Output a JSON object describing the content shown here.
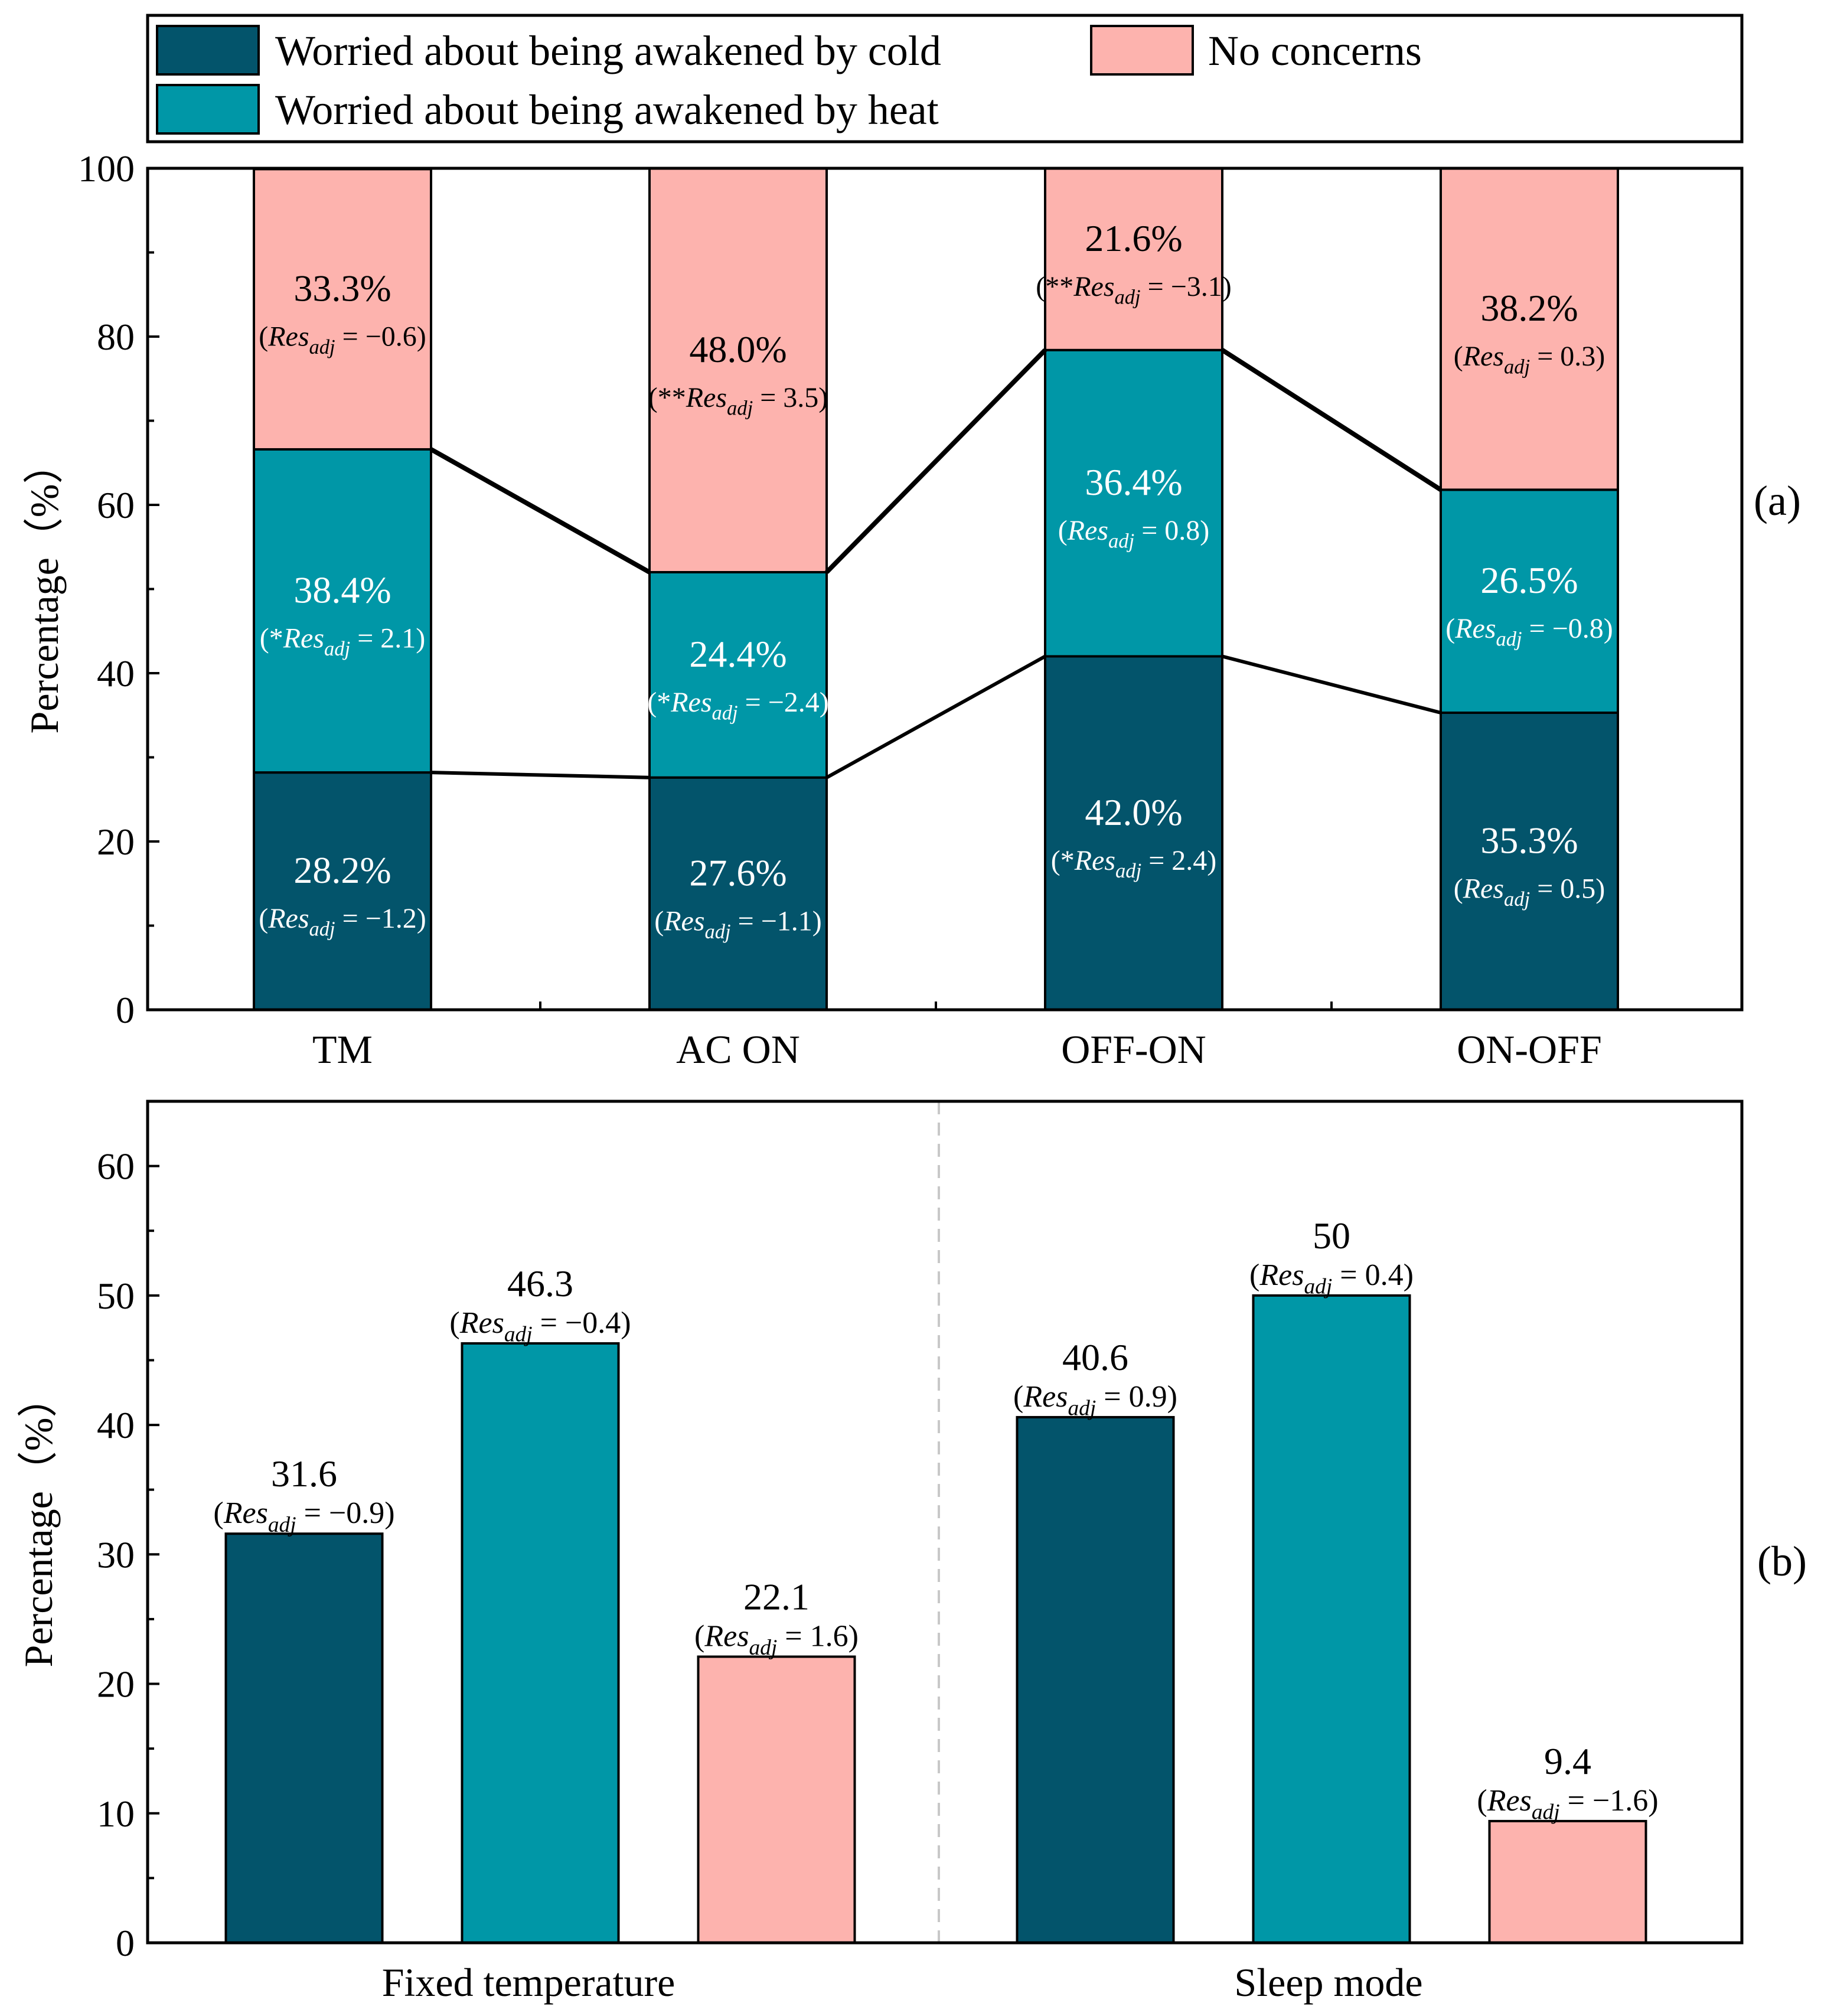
{
  "colors": {
    "cold": "#03546B",
    "heat": "#0097A7",
    "none": "#FDB3AE",
    "axis": "#000000",
    "white_label": "#FFFFFF",
    "divider": "#C8C8C8"
  },
  "legend": {
    "items": [
      {
        "key": "cold",
        "label": "Worried about being awakened by cold"
      },
      {
        "key": "heat",
        "label": "Worried about being awakened by heat"
      },
      {
        "key": "none",
        "label": "No concerns"
      }
    ]
  },
  "chart_data": [
    {
      "id": "a",
      "type": "bar",
      "stacked": true,
      "panel_label": "(a)",
      "ylabel": "Percentage（%）",
      "ylim": [
        0,
        100
      ],
      "yticks": [
        "0",
        "20",
        "40",
        "60",
        "80",
        "100"
      ],
      "categories": [
        "TM",
        "AC ON",
        "OFF-ON",
        "ON-OFF"
      ],
      "series": [
        {
          "key": "cold",
          "name": "Worried about being awakened by cold",
          "values": [
            28.2,
            27.6,
            42.0,
            35.3
          ],
          "labels": [
            "28.2%",
            "27.6%",
            "42.0%",
            "35.3%"
          ],
          "res_prefix": [
            "",
            "",
            "*",
            ""
          ],
          "res_value": [
            "−1.2",
            "−1.1",
            "2.4",
            "0.5"
          ]
        },
        {
          "key": "heat",
          "name": "Worried about being awakened by heat",
          "values": [
            38.4,
            24.4,
            36.4,
            26.5
          ],
          "labels": [
            "38.4%",
            "24.4%",
            "36.4%",
            "26.5%"
          ],
          "res_prefix": [
            "*",
            "*",
            "",
            ""
          ],
          "res_value": [
            "2.1",
            "−2.4",
            "0.8",
            "−0.8"
          ]
        },
        {
          "key": "none",
          "name": "No concerns",
          "values": [
            33.3,
            48.0,
            21.6,
            38.2
          ],
          "labels": [
            "33.3%",
            "48.0%",
            "21.6%",
            "38.2%"
          ],
          "res_prefix": [
            "",
            "**",
            "**",
            ""
          ],
          "res_value": [
            "−0.6",
            "3.5",
            "−3.1",
            "0.3"
          ]
        }
      ]
    },
    {
      "id": "b",
      "type": "bar",
      "stacked": false,
      "panel_label": "(b)",
      "ylabel": "Percentage（%）",
      "ylim": [
        0,
        65
      ],
      "yticks": [
        "0",
        "10",
        "20",
        "30",
        "40",
        "50",
        "60"
      ],
      "categories": [
        "Fixed temperature",
        "Sleep mode"
      ],
      "series": [
        {
          "key": "cold",
          "name": "Worried about being awakened by cold",
          "values": [
            31.6,
            40.6
          ],
          "labels": [
            "31.6",
            "40.6"
          ],
          "res_value": [
            "−0.9",
            "0.9"
          ]
        },
        {
          "key": "heat",
          "name": "Worried about being awakened by heat",
          "values": [
            46.3,
            50
          ],
          "labels": [
            "46.3",
            "50"
          ],
          "res_value": [
            "−0.4",
            "0.4"
          ]
        },
        {
          "key": "none",
          "name": "No concerns",
          "values": [
            22.1,
            9.4
          ],
          "labels": [
            "22.1",
            "9.4"
          ],
          "res_value": [
            "1.6",
            "−1.6"
          ]
        }
      ]
    }
  ],
  "res_adj": {
    "base": "Res",
    "sub": "adj",
    "eq": " = "
  }
}
